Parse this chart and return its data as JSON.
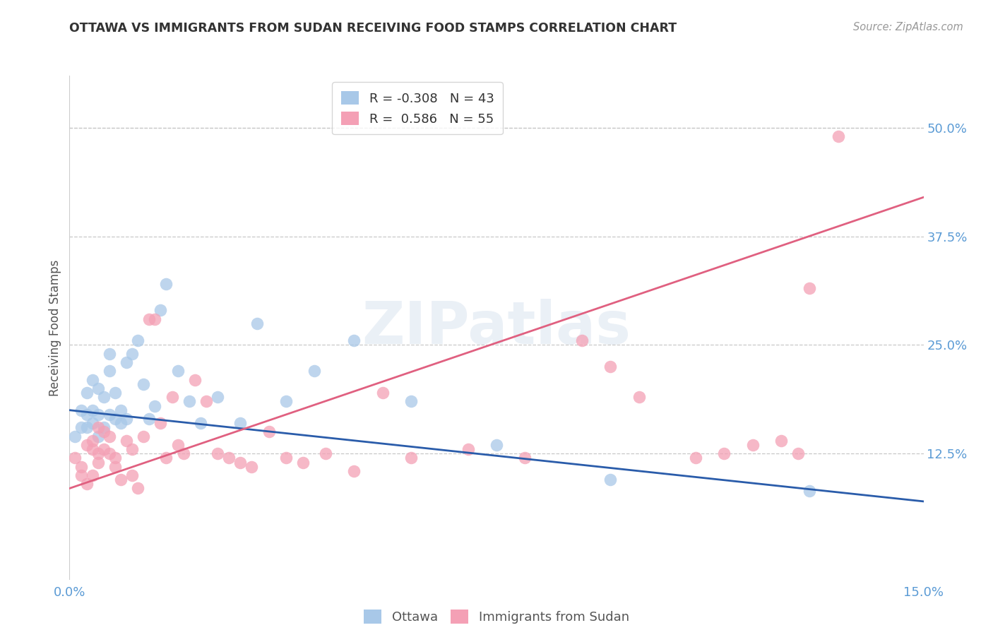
{
  "title": "OTTAWA VS IMMIGRANTS FROM SUDAN RECEIVING FOOD STAMPS CORRELATION CHART",
  "source": "Source: ZipAtlas.com",
  "ylabel": "Receiving Food Stamps",
  "ytick_labels": [
    "50.0%",
    "37.5%",
    "25.0%",
    "12.5%"
  ],
  "ytick_values": [
    0.5,
    0.375,
    0.25,
    0.125
  ],
  "xlim": [
    0.0,
    0.15
  ],
  "ylim": [
    -0.02,
    0.56
  ],
  "legend_ottawa_R": "-0.308",
  "legend_ottawa_N": "43",
  "legend_sudan_R": "0.586",
  "legend_sudan_N": "55",
  "ottawa_color": "#a8c8e8",
  "sudan_color": "#f4a0b5",
  "ottawa_line_color": "#2a5caa",
  "sudan_line_color": "#e06080",
  "watermark": "ZIPatlas",
  "background_color": "#ffffff",
  "ottawa_line_x0": 0.0,
  "ottawa_line_y0": 0.175,
  "ottawa_line_x1": 0.15,
  "ottawa_line_y1": 0.07,
  "sudan_line_x0": 0.0,
  "sudan_line_y0": 0.085,
  "sudan_line_x1": 0.15,
  "sudan_line_y1": 0.42,
  "ottawa_x": [
    0.001,
    0.002,
    0.002,
    0.003,
    0.003,
    0.003,
    0.004,
    0.004,
    0.004,
    0.005,
    0.005,
    0.005,
    0.006,
    0.006,
    0.007,
    0.007,
    0.007,
    0.008,
    0.008,
    0.009,
    0.009,
    0.01,
    0.01,
    0.011,
    0.012,
    0.013,
    0.014,
    0.015,
    0.016,
    0.017,
    0.019,
    0.021,
    0.023,
    0.026,
    0.03,
    0.033,
    0.038,
    0.043,
    0.05,
    0.06,
    0.075,
    0.095,
    0.13
  ],
  "ottawa_y": [
    0.145,
    0.155,
    0.175,
    0.155,
    0.17,
    0.195,
    0.16,
    0.175,
    0.21,
    0.145,
    0.17,
    0.2,
    0.155,
    0.19,
    0.17,
    0.22,
    0.24,
    0.165,
    0.195,
    0.16,
    0.175,
    0.165,
    0.23,
    0.24,
    0.255,
    0.205,
    0.165,
    0.18,
    0.29,
    0.32,
    0.22,
    0.185,
    0.16,
    0.19,
    0.16,
    0.275,
    0.185,
    0.22,
    0.255,
    0.185,
    0.135,
    0.095,
    0.082
  ],
  "sudan_x": [
    0.001,
    0.002,
    0.002,
    0.003,
    0.003,
    0.004,
    0.004,
    0.004,
    0.005,
    0.005,
    0.005,
    0.006,
    0.006,
    0.007,
    0.007,
    0.008,
    0.008,
    0.009,
    0.01,
    0.011,
    0.011,
    0.012,
    0.013,
    0.014,
    0.015,
    0.016,
    0.017,
    0.018,
    0.019,
    0.02,
    0.022,
    0.024,
    0.026,
    0.028,
    0.03,
    0.032,
    0.035,
    0.038,
    0.041,
    0.045,
    0.05,
    0.055,
    0.06,
    0.07,
    0.08,
    0.09,
    0.095,
    0.1,
    0.11,
    0.115,
    0.12,
    0.125,
    0.128,
    0.13,
    0.135
  ],
  "sudan_y": [
    0.12,
    0.11,
    0.1,
    0.135,
    0.09,
    0.13,
    0.1,
    0.14,
    0.125,
    0.115,
    0.155,
    0.13,
    0.15,
    0.125,
    0.145,
    0.12,
    0.11,
    0.095,
    0.14,
    0.13,
    0.1,
    0.085,
    0.145,
    0.28,
    0.28,
    0.16,
    0.12,
    0.19,
    0.135,
    0.125,
    0.21,
    0.185,
    0.125,
    0.12,
    0.115,
    0.11,
    0.15,
    0.12,
    0.115,
    0.125,
    0.105,
    0.195,
    0.12,
    0.13,
    0.12,
    0.255,
    0.225,
    0.19,
    0.12,
    0.125,
    0.135,
    0.14,
    0.125,
    0.315,
    0.49
  ]
}
